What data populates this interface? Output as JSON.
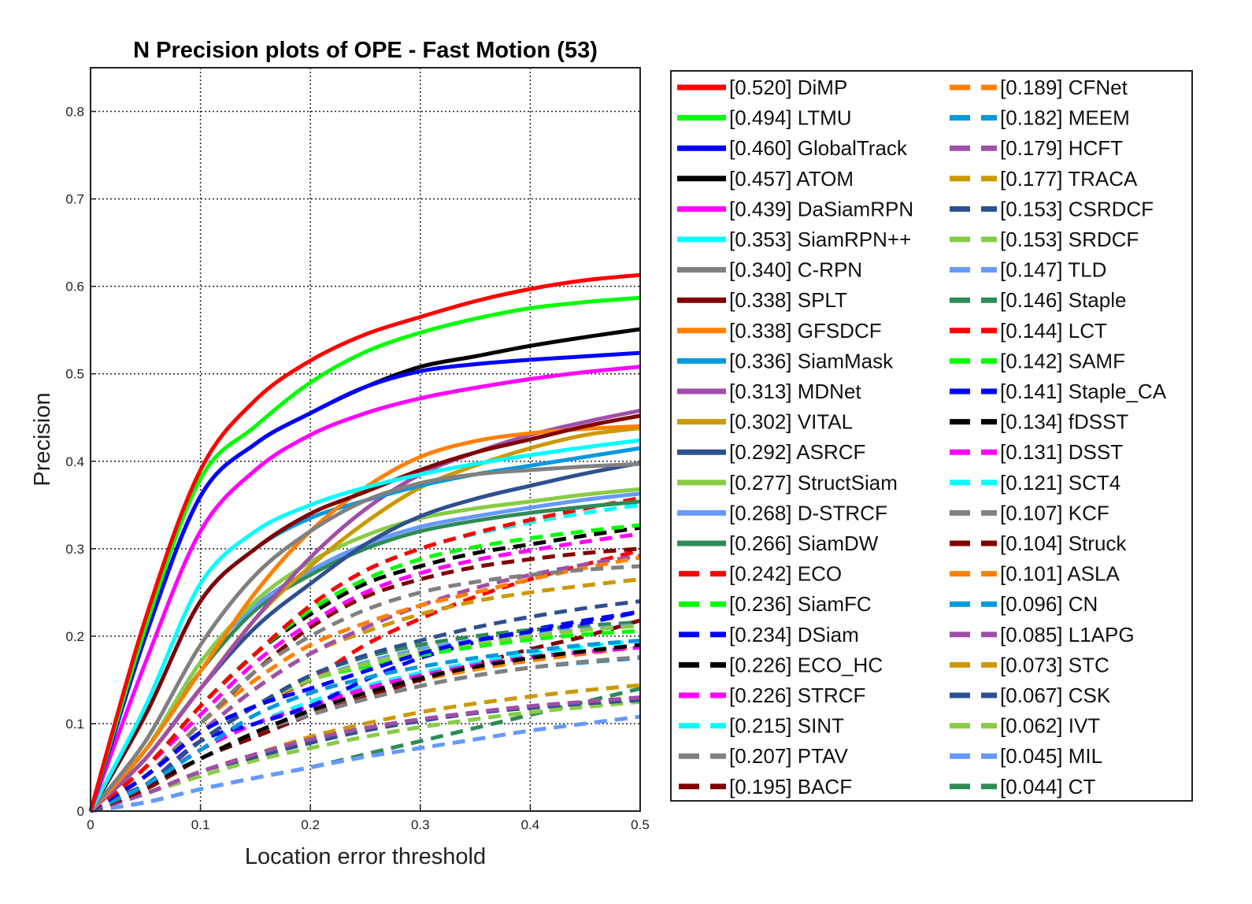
{
  "chart_data": {
    "type": "line",
    "title": "N Precision plots of OPE - Fast Motion (53)",
    "xlabel": "Location error threshold",
    "ylabel": "Precision",
    "xlim": [
      0,
      0.5
    ],
    "ylim": [
      0,
      0.85
    ],
    "xticks": [
      "0",
      "0.1",
      "0.2",
      "0.3",
      "0.4",
      "0.5"
    ],
    "yticks": [
      "0",
      "0.1",
      "0.2",
      "0.3",
      "0.4",
      "0.5",
      "0.6",
      "0.7",
      "0.8"
    ],
    "grid": true,
    "legend_placement": "outside-right",
    "x": [
      0,
      0.05,
      0.1,
      0.15,
      0.2,
      0.25,
      0.3,
      0.35,
      0.4,
      0.45,
      0.5
    ],
    "series": [
      {
        "name": "[0.520] DiMP",
        "color": "#ff0000",
        "style": "solid",
        "values": [
          0,
          0.22,
          0.39,
          0.47,
          0.515,
          0.545,
          0.565,
          0.583,
          0.597,
          0.607,
          0.613
        ]
      },
      {
        "name": "[0.494] LTMU",
        "color": "#00ff00",
        "style": "solid",
        "values": [
          0,
          0.21,
          0.38,
          0.44,
          0.49,
          0.525,
          0.547,
          0.563,
          0.575,
          0.582,
          0.587
        ]
      },
      {
        "name": "[0.460] GlobalTrack",
        "color": "#0000ff",
        "style": "solid",
        "values": [
          0,
          0.2,
          0.36,
          0.42,
          0.455,
          0.485,
          0.503,
          0.511,
          0.516,
          0.52,
          0.524
        ]
      },
      {
        "name": "[0.457] ATOM",
        "color": "#000000",
        "style": "solid",
        "values": [
          0,
          0.2,
          0.36,
          0.42,
          0.455,
          0.485,
          0.508,
          0.52,
          0.532,
          0.542,
          0.551
        ]
      },
      {
        "name": "[0.439] DaSiamRPN",
        "color": "#ff00ff",
        "style": "solid",
        "values": [
          0,
          0.17,
          0.32,
          0.39,
          0.43,
          0.455,
          0.472,
          0.484,
          0.494,
          0.502,
          0.508
        ]
      },
      {
        "name": "[0.353] SiamRPN++",
        "color": "#00ffff",
        "style": "solid",
        "values": [
          0,
          0.12,
          0.26,
          0.32,
          0.35,
          0.37,
          0.385,
          0.397,
          0.407,
          0.416,
          0.424
        ]
      },
      {
        "name": "[0.340] C-RPN",
        "color": "#808080",
        "style": "solid",
        "values": [
          0,
          0.08,
          0.19,
          0.27,
          0.32,
          0.355,
          0.375,
          0.385,
          0.39,
          0.394,
          0.397
        ]
      },
      {
        "name": "[0.338] SPLT",
        "color": "#800000",
        "style": "solid",
        "values": [
          0,
          0.11,
          0.24,
          0.3,
          0.34,
          0.365,
          0.39,
          0.41,
          0.425,
          0.44,
          0.452
        ]
      },
      {
        "name": "[0.338] GFSDCF",
        "color": "#ff8000",
        "style": "solid",
        "values": [
          0,
          0.07,
          0.16,
          0.25,
          0.32,
          0.37,
          0.405,
          0.423,
          0.432,
          0.437,
          0.44
        ]
      },
      {
        "name": "[0.336] SiamMask",
        "color": "#0099dd",
        "style": "solid",
        "values": [
          0,
          0.11,
          0.24,
          0.3,
          0.335,
          0.355,
          0.372,
          0.385,
          0.395,
          0.405,
          0.415
        ]
      },
      {
        "name": "[0.313] MDNet",
        "color": "#a04fa8",
        "style": "solid",
        "values": [
          0,
          0.06,
          0.14,
          0.22,
          0.29,
          0.345,
          0.385,
          0.41,
          0.43,
          0.445,
          0.458
        ]
      },
      {
        "name": "[0.302] VITAL",
        "color": "#cc9900",
        "style": "solid",
        "values": [
          0,
          0.06,
          0.14,
          0.22,
          0.28,
          0.33,
          0.37,
          0.395,
          0.415,
          0.43,
          0.438
        ]
      },
      {
        "name": "[0.292] ASRCF",
        "color": "#2e5090",
        "style": "solid",
        "values": [
          0,
          0.06,
          0.14,
          0.21,
          0.26,
          0.305,
          0.337,
          0.357,
          0.372,
          0.386,
          0.398
        ]
      },
      {
        "name": "[0.277] StructSiam",
        "color": "#88cc44",
        "style": "solid",
        "values": [
          0,
          0.07,
          0.17,
          0.24,
          0.285,
          0.315,
          0.335,
          0.346,
          0.354,
          0.362,
          0.368
        ]
      },
      {
        "name": "[0.268] D-STRCF",
        "color": "#6699ff",
        "style": "solid",
        "values": [
          0,
          0.07,
          0.17,
          0.235,
          0.275,
          0.305,
          0.325,
          0.337,
          0.347,
          0.356,
          0.363
        ]
      },
      {
        "name": "[0.266] SiamDW",
        "color": "#2e8b57",
        "style": "solid",
        "values": [
          0,
          0.07,
          0.16,
          0.23,
          0.27,
          0.3,
          0.32,
          0.332,
          0.341,
          0.348,
          0.354
        ]
      },
      {
        "name": "[0.242] ECO",
        "color": "#ff0000",
        "style": "dashed",
        "values": [
          0,
          0.05,
          0.12,
          0.18,
          0.235,
          0.275,
          0.3,
          0.318,
          0.333,
          0.346,
          0.358
        ]
      },
      {
        "name": "[0.236] SiamFC",
        "color": "#00ff00",
        "style": "dashed",
        "values": [
          0,
          0.05,
          0.12,
          0.18,
          0.23,
          0.265,
          0.288,
          0.302,
          0.312,
          0.32,
          0.327
        ]
      },
      {
        "name": "[0.234] DSiam",
        "color": "#0000ff",
        "style": "dashed",
        "values": [
          0,
          0.04,
          0.09,
          0.12,
          0.14,
          0.16,
          0.18,
          0.195,
          0.205,
          0.215,
          0.228
        ]
      },
      {
        "name": "[0.226] ECO_HC",
        "color": "#000000",
        "style": "dashed",
        "values": [
          0,
          0.05,
          0.12,
          0.18,
          0.225,
          0.26,
          0.28,
          0.295,
          0.305,
          0.315,
          0.324
        ]
      },
      {
        "name": "[0.226] STRCF",
        "color": "#ff00ff",
        "style": "dashed",
        "values": [
          0,
          0.05,
          0.11,
          0.17,
          0.215,
          0.25,
          0.272,
          0.287,
          0.298,
          0.308,
          0.317
        ]
      },
      {
        "name": "[0.215] SINT",
        "color": "#00ffff",
        "style": "dashed",
        "values": [
          0,
          0.05,
          0.12,
          0.18,
          0.235,
          0.275,
          0.3,
          0.317,
          0.33,
          0.341,
          0.35
        ]
      },
      {
        "name": "[0.207] PTAV",
        "color": "#808080",
        "style": "dashed",
        "values": [
          0,
          0.04,
          0.1,
          0.16,
          0.2,
          0.23,
          0.25,
          0.262,
          0.27,
          0.276,
          0.28
        ]
      },
      {
        "name": "[0.195] BACF",
        "color": "#800000",
        "style": "dashed",
        "values": [
          0,
          0.04,
          0.1,
          0.16,
          0.21,
          0.245,
          0.265,
          0.279,
          0.288,
          0.295,
          0.3
        ]
      },
      {
        "name": "[0.189] CFNet",
        "color": "#ff8000",
        "style": "dashed",
        "values": [
          0,
          0.04,
          0.1,
          0.15,
          0.19,
          0.215,
          0.235,
          0.25,
          0.265,
          0.278,
          0.29
        ]
      },
      {
        "name": "[0.182] MEEM",
        "color": "#0099dd",
        "style": "dashed",
        "values": [
          0,
          0.03,
          0.07,
          0.11,
          0.135,
          0.152,
          0.165,
          0.175,
          0.183,
          0.19,
          0.195
        ]
      },
      {
        "name": "[0.179] HCFT",
        "color": "#a04fa8",
        "style": "dashed",
        "values": [
          0,
          0.04,
          0.09,
          0.14,
          0.18,
          0.21,
          0.235,
          0.255,
          0.27,
          0.282,
          0.292
        ]
      },
      {
        "name": "[0.177] TRACA",
        "color": "#cc9900",
        "style": "dashed",
        "values": [
          0,
          0.04,
          0.09,
          0.14,
          0.18,
          0.205,
          0.225,
          0.24,
          0.25,
          0.258,
          0.265
        ]
      },
      {
        "name": "[0.153] CSRDCF",
        "color": "#2e5090",
        "style": "dashed",
        "values": [
          0,
          0.03,
          0.08,
          0.12,
          0.155,
          0.178,
          0.195,
          0.21,
          0.222,
          0.232,
          0.24
        ]
      },
      {
        "name": "[0.153] SRDCF",
        "color": "#88cc44",
        "style": "dashed",
        "values": [
          0,
          0.03,
          0.08,
          0.12,
          0.15,
          0.168,
          0.182,
          0.192,
          0.2,
          0.207,
          0.212
        ]
      },
      {
        "name": "[0.147] TLD",
        "color": "#6699ff",
        "style": "dashed",
        "values": [
          0,
          0.03,
          0.08,
          0.12,
          0.15,
          0.17,
          0.185,
          0.195,
          0.202,
          0.208,
          0.213
        ]
      },
      {
        "name": "[0.146] Staple",
        "color": "#2e8b57",
        "style": "dashed",
        "values": [
          0,
          0.03,
          0.08,
          0.12,
          0.155,
          0.176,
          0.19,
          0.2,
          0.207,
          0.212,
          0.216
        ]
      },
      {
        "name": "[0.144] LCT",
        "color": "#ff0000",
        "style": "dashed",
        "values": [
          0,
          0.03,
          0.08,
          0.12,
          0.15,
          0.19,
          0.22,
          0.245,
          0.265,
          0.282,
          0.298
        ]
      },
      {
        "name": "[0.142] SAMF",
        "color": "#00ff00",
        "style": "dashed",
        "values": [
          0,
          0.03,
          0.08,
          0.12,
          0.15,
          0.165,
          0.178,
          0.188,
          0.196,
          0.202,
          0.206
        ]
      },
      {
        "name": "[0.141] Staple_CA",
        "color": "#0000ff",
        "style": "dashed",
        "values": [
          0,
          0.03,
          0.08,
          0.1,
          0.12,
          0.15,
          0.175,
          0.193,
          0.207,
          0.218,
          0.228
        ]
      },
      {
        "name": "[0.134] fDSST",
        "color": "#000000",
        "style": "dashed",
        "values": [
          0,
          0.03,
          0.06,
          0.09,
          0.115,
          0.135,
          0.152,
          0.165,
          0.175,
          0.183,
          0.19
        ]
      },
      {
        "name": "[0.131] DSST",
        "color": "#ff00ff",
        "style": "dashed",
        "values": [
          0,
          0.03,
          0.07,
          0.1,
          0.12,
          0.14,
          0.155,
          0.167,
          0.176,
          0.182,
          0.187
        ]
      },
      {
        "name": "[0.121] SCT4",
        "color": "#00ffff",
        "style": "dashed",
        "values": [
          0,
          0.03,
          0.07,
          0.1,
          0.125,
          0.143,
          0.158,
          0.17,
          0.18,
          0.188,
          0.195
        ]
      },
      {
        "name": "[0.107] KCF",
        "color": "#808080",
        "style": "dashed",
        "values": [
          0,
          0.03,
          0.06,
          0.09,
          0.11,
          0.128,
          0.143,
          0.155,
          0.164,
          0.171,
          0.176
        ]
      },
      {
        "name": "[0.104] Struck",
        "color": "#800000",
        "style": "dashed",
        "values": [
          0,
          0.025,
          0.06,
          0.085,
          0.11,
          0.13,
          0.15,
          0.168,
          0.185,
          0.2,
          0.218
        ]
      },
      {
        "name": "[0.101] ASLA",
        "color": "#ff8000",
        "style": "dashed",
        "values": [
          0,
          0.025,
          0.06,
          0.09,
          0.115,
          0.135,
          0.15,
          0.162,
          0.172,
          0.18,
          0.188
        ]
      },
      {
        "name": "[0.096] CN",
        "color": "#0099dd",
        "style": "dashed",
        "values": [
          0,
          0.025,
          0.06,
          0.085,
          0.11,
          0.128,
          0.143,
          0.155,
          0.164,
          0.17,
          0.175
        ]
      },
      {
        "name": "[0.085] L1APG",
        "color": "#a04fa8",
        "style": "dashed",
        "values": [
          0,
          0.02,
          0.045,
          0.065,
          0.082,
          0.095,
          0.105,
          0.113,
          0.12,
          0.125,
          0.13
        ]
      },
      {
        "name": "[0.073] STC",
        "color": "#cc9900",
        "style": "dashed",
        "values": [
          0,
          0.02,
          0.045,
          0.065,
          0.085,
          0.1,
          0.113,
          0.123,
          0.131,
          0.138,
          0.144
        ]
      },
      {
        "name": "[0.067] CSK",
        "color": "#2e5090",
        "style": "dashed",
        "values": [
          0,
          0.02,
          0.045,
          0.062,
          0.078,
          0.092,
          0.103,
          0.112,
          0.118,
          0.123,
          0.127
        ]
      },
      {
        "name": "[0.062] IVT",
        "color": "#88cc44",
        "style": "dashed",
        "values": [
          0,
          0.02,
          0.04,
          0.058,
          0.072,
          0.085,
          0.096,
          0.105,
          0.113,
          0.119,
          0.125
        ]
      },
      {
        "name": "[0.045] MIL",
        "color": "#6699ff",
        "style": "dashed",
        "values": [
          0,
          0.01,
          0.025,
          0.038,
          0.05,
          0.062,
          0.072,
          0.082,
          0.092,
          0.1,
          0.108
        ]
      },
      {
        "name": "[0.044] CT",
        "color": "#2e8b57",
        "style": "dashed",
        "values": [
          0,
          0.01,
          0.025,
          0.038,
          0.05,
          0.065,
          0.08,
          0.095,
          0.11,
          0.125,
          0.14
        ]
      }
    ]
  }
}
